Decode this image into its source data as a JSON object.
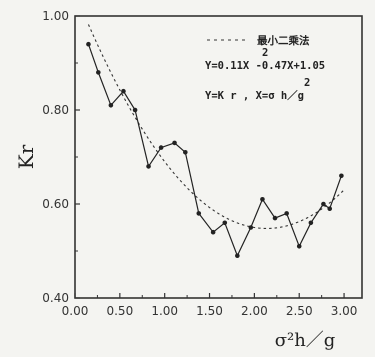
{
  "chart_data": {
    "type": "line",
    "ylabel": "Kr",
    "xlabel": "σ²h／g",
    "xlim": [
      0,
      3.2
    ],
    "ylim": [
      0.4,
      1.0
    ],
    "x_ticks": [
      0.0,
      0.5,
      1.0,
      1.5,
      2.0,
      2.5,
      3.0
    ],
    "x_tick_labels": [
      "0.00",
      "0.50",
      "1.00",
      "1.50",
      "2.00",
      "2.50",
      "3.00"
    ],
    "y_ticks": [
      0.4,
      0.6,
      0.8,
      1.0
    ],
    "y_tick_labels": [
      "0.40",
      "0.60",
      "0.80",
      "1.00"
    ],
    "grid": false,
    "legend": {
      "placement": "top-right",
      "fit_label": "最小二乘法",
      "equation_1": "Y=0.11X -0.47X+1.05",
      "equation_1_exp": "2",
      "equation_2": "Y=K r  , X=σ h／g",
      "equation_2_exp": "2"
    },
    "series": [
      {
        "style": "solid-with-markers",
        "x": [
          0.15,
          0.26,
          0.4,
          0.54,
          0.67,
          0.82,
          0.96,
          1.11,
          1.23,
          1.38,
          1.54,
          1.67,
          1.81,
          1.96,
          2.09,
          2.23,
          2.36,
          2.5,
          2.63,
          2.77,
          2.84,
          2.97
        ],
        "y": [
          0.94,
          0.88,
          0.81,
          0.84,
          0.8,
          0.68,
          0.72,
          0.73,
          0.71,
          0.58,
          0.54,
          0.56,
          0.49,
          0.55,
          0.61,
          0.57,
          0.58,
          0.51,
          0.56,
          0.6,
          0.59,
          0.66
        ]
      },
      {
        "style": "dashed-fit",
        "equation": "0.11x^2-0.47x+1.05"
      }
    ]
  }
}
